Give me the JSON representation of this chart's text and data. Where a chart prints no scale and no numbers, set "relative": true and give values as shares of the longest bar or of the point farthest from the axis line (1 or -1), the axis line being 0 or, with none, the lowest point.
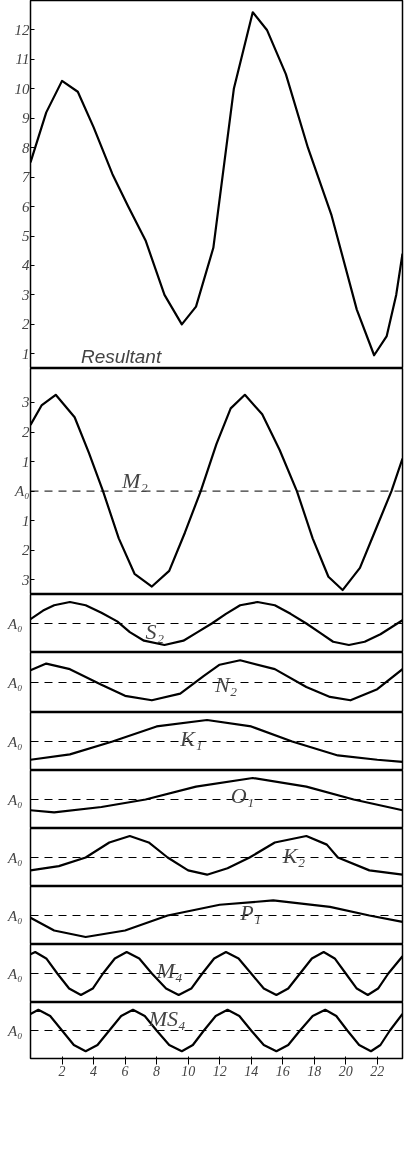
{
  "chart_data": [
    {
      "type": "line",
      "xlim": [
        0,
        23.6
      ],
      "ylim": [
        0.5,
        13
      ],
      "yticks": [
        1,
        2,
        3,
        4,
        5,
        6,
        7,
        8,
        9,
        10,
        11,
        12
      ],
      "tick_labels": "y",
      "x": [
        0,
        1,
        2,
        3,
        4,
        5.2,
        6.2,
        7.3,
        8.5,
        9.6,
        10.5,
        11.6,
        12.9,
        14.1,
        15,
        16.2,
        17.6,
        19.1,
        20.7,
        21.8,
        22.6,
        23.2,
        23.6
      ],
      "series": [
        {
          "name": "Resultant",
          "color": "#000000",
          "values": [
            7.5,
            9.2,
            10.27,
            9.9,
            8.7,
            7.1,
            6.0,
            4.85,
            3.0,
            2.0,
            2.6,
            4.6,
            10.0,
            12.6,
            12.0,
            10.5,
            8.0,
            5.7,
            2.5,
            0.95,
            1.6,
            3.0,
            4.4
          ]
        }
      ]
    },
    {
      "type": "line",
      "xlim": [
        0,
        23.6
      ],
      "ylim": [
        -3.5,
        4.15
      ],
      "yticks": [
        3,
        2,
        1,
        {
          "value": 0,
          "label": "A₀"
        },
        {
          "value": -1,
          "label": "1"
        },
        {
          "value": -2,
          "label": "2"
        },
        {
          "value": -3,
          "label": "3"
        }
      ],
      "tick_labels": "y",
      "ref_lines": [
        {
          "axis": "y",
          "value": 0,
          "line_style": "dashed"
        }
      ],
      "x": [
        0,
        0.7,
        1.6,
        2.8,
        3.7,
        4.6,
        5.6,
        6.6,
        7.7,
        8.8,
        9.8,
        10.8,
        11.8,
        12.7,
        13.6,
        14.7,
        15.8,
        16.9,
        17.9,
        18.9,
        19.8,
        20.9,
        21.9,
        22.9,
        23.6
      ],
      "series": [
        {
          "name": "M₂",
          "color": "#000000",
          "values": [
            2.24,
            2.9,
            3.26,
            2.5,
            1.3,
            0,
            -1.6,
            -2.8,
            -3.23,
            -2.7,
            -1.4,
            0,
            1.6,
            2.8,
            3.26,
            2.6,
            1.4,
            0,
            -1.6,
            -2.9,
            -3.35,
            -2.6,
            -1.3,
            0,
            1.1
          ]
        }
      ]
    },
    {
      "type": "line",
      "relative": true,
      "xlim": [
        0,
        23.6
      ],
      "tick_labels": false,
      "ref_lines": [
        {
          "axis": "y",
          "value": 0,
          "label": "A₀",
          "line_style": "dashed"
        }
      ],
      "x": [
        0,
        0.8,
        1.5,
        2.5,
        3.5,
        4.5,
        5.5,
        6.3,
        7.2,
        8.5,
        9.7,
        10.6,
        11.5,
        12.4,
        13.3,
        14.4,
        15.5,
        16.5,
        17.5,
        18.4,
        19.2,
        20.2,
        21.2,
        22.2,
        23.6
      ],
      "series": [
        {
          "name": "S₂",
          "color": "#000000",
          "values": [
            0.2,
            0.6,
            0.85,
            1,
            0.85,
            0.5,
            0.1,
            -0.4,
            -0.8,
            -1,
            -0.8,
            -0.4,
            0,
            0.45,
            0.85,
            1,
            0.85,
            0.45,
            0,
            -0.45,
            -0.85,
            -1,
            -0.85,
            -0.5,
            0.15
          ]
        }
      ]
    },
    {
      "type": "line",
      "relative": true,
      "xlim": [
        0,
        23.6
      ],
      "tick_labels": false,
      "ref_lines": [
        {
          "axis": "y",
          "value": 0,
          "label": "A₀",
          "line_style": "dashed"
        }
      ],
      "x": [
        0,
        1,
        2.5,
        4.5,
        6,
        7.7,
        9.5,
        11,
        12,
        13.3,
        15.5,
        17.5,
        19,
        20.3,
        22,
        23.6
      ],
      "series": [
        {
          "name": "N₂",
          "color": "#000000",
          "values": [
            0.55,
            0.85,
            0.6,
            -0.1,
            -0.6,
            -0.8,
            -0.5,
            0.3,
            0.8,
            1,
            0.6,
            -0.2,
            -0.65,
            -0.8,
            -0.3,
            0.6
          ]
        }
      ]
    },
    {
      "type": "line",
      "relative": true,
      "xlim": [
        0,
        23.6
      ],
      "tick_labels": false,
      "ref_lines": [
        {
          "axis": "y",
          "value": 0,
          "label": "A₀",
          "line_style": "dashed"
        }
      ],
      "x": [
        0,
        2.5,
        5.2,
        8,
        11.2,
        14,
        16.6,
        19.5,
        22,
        23.6
      ],
      "series": [
        {
          "name": "K₁",
          "color": "#000000",
          "values": [
            -0.85,
            -0.6,
            0,
            0.7,
            1,
            0.7,
            0,
            -0.65,
            -0.85,
            -0.95
          ]
        }
      ]
    },
    {
      "type": "line",
      "relative": true,
      "xlim": [
        0,
        23.6
      ],
      "tick_labels": false,
      "ref_lines": [
        {
          "axis": "y",
          "value": 0,
          "label": "A₀",
          "line_style": "dashed"
        }
      ],
      "x": [
        0,
        1.5,
        4.5,
        7.3,
        10.5,
        14.1,
        17.5,
        20.5,
        23.6
      ],
      "series": [
        {
          "name": "O₁",
          "color": "#000000",
          "values": [
            -0.5,
            -0.6,
            -0.35,
            0,
            0.6,
            1,
            0.6,
            0,
            -0.5
          ]
        }
      ]
    },
    {
      "type": "line",
      "relative": true,
      "xlim": [
        0,
        23.6
      ],
      "tick_labels": false,
      "ref_lines": [
        {
          "axis": "y",
          "value": 0,
          "label": "A₀",
          "line_style": "dashed"
        }
      ],
      "x": [
        0,
        1.8,
        3.5,
        5,
        6.3,
        7.5,
        8.7,
        10,
        11.2,
        12.5,
        13.9,
        15.5,
        17.5,
        18.8,
        19.5,
        21.5,
        23.6
      ],
      "series": [
        {
          "name": "K₂",
          "color": "#000000",
          "values": [
            -0.6,
            -0.4,
            0,
            0.7,
            1,
            0.7,
            0,
            -0.6,
            -0.8,
            -0.5,
            0,
            0.7,
            1,
            0.6,
            0,
            -0.6,
            -0.8
          ]
        }
      ]
    },
    {
      "type": "line",
      "relative": true,
      "xlim": [
        0,
        23.6
      ],
      "tick_labels": false,
      "ref_lines": [
        {
          "axis": "y",
          "value": 0,
          "label": "A₀",
          "line_style": "dashed"
        }
      ],
      "x": [
        0,
        1.5,
        3.5,
        6,
        8.7,
        12,
        15.4,
        19,
        21.5,
        23.6
      ],
      "series": [
        {
          "name": "P₁",
          "color": "#000000",
          "values": [
            -0.1,
            -0.7,
            -1,
            -0.7,
            0,
            0.5,
            0.7,
            0.4,
            0,
            -0.3
          ]
        }
      ]
    },
    {
      "type": "line",
      "relative": true,
      "xlim": [
        0,
        23.6
      ],
      "tick_labels": false,
      "ref_lines": [
        {
          "axis": "y",
          "value": 0,
          "label": "A₀",
          "line_style": "dashed"
        }
      ],
      "x": [
        0,
        0.3,
        1.0,
        1.7,
        2.45,
        3.2,
        3.95,
        4.6,
        5.35,
        6.1,
        6.9,
        7.7,
        8.6,
        9.4,
        10.2,
        10.9,
        11.65,
        12.4,
        13.2,
        14,
        14.8,
        15.6,
        16.35,
        17.1,
        17.85,
        18.6,
        19.3,
        20,
        20.7,
        21.4,
        22.05,
        22.7,
        23.6
      ],
      "series": [
        {
          "name": "M₄",
          "color": "#000000",
          "values": [
            0.9,
            1,
            0.7,
            0,
            -0.7,
            -1,
            -0.7,
            0,
            0.7,
            1,
            0.7,
            0,
            -0.7,
            -1,
            -0.7,
            0,
            0.7,
            1,
            0.7,
            0,
            -0.7,
            -1,
            -0.7,
            0,
            0.7,
            1,
            0.7,
            0,
            -0.7,
            -1,
            -0.7,
            0,
            0.8
          ]
        }
      ]
    },
    {
      "type": "line",
      "relative": true,
      "xlim": [
        0,
        23.6
      ],
      "xticks": [
        2,
        4,
        6,
        8,
        10,
        12,
        14,
        16,
        18,
        20,
        22
      ],
      "tick_labels": "x",
      "ref_lines": [
        {
          "axis": "y",
          "value": 0,
          "label": "A₀",
          "line_style": "dashed"
        }
      ],
      "x": [
        0,
        0.5,
        1.25,
        2,
        2.75,
        3.5,
        4.25,
        5,
        5.75,
        6.5,
        7.25,
        8,
        8.8,
        9.6,
        10.3,
        11,
        11.75,
        12.5,
        13.25,
        14,
        14.8,
        15.6,
        16.35,
        17.1,
        17.9,
        18.7,
        19.4,
        20.1,
        20.85,
        21.6,
        22.2,
        22.8,
        23.6
      ],
      "series": [
        {
          "name": "MS₄",
          "color": "#000000",
          "values": [
            0.8,
            1,
            0.7,
            0,
            -0.7,
            -1,
            -0.7,
            0,
            0.7,
            1,
            0.7,
            0,
            -0.7,
            -1,
            -0.7,
            0,
            0.7,
            1,
            0.7,
            0,
            -0.7,
            -1,
            -0.7,
            0,
            0.7,
            1,
            0.7,
            0,
            -0.7,
            -1,
            -0.7,
            0,
            0.8
          ]
        }
      ]
    }
  ]
}
